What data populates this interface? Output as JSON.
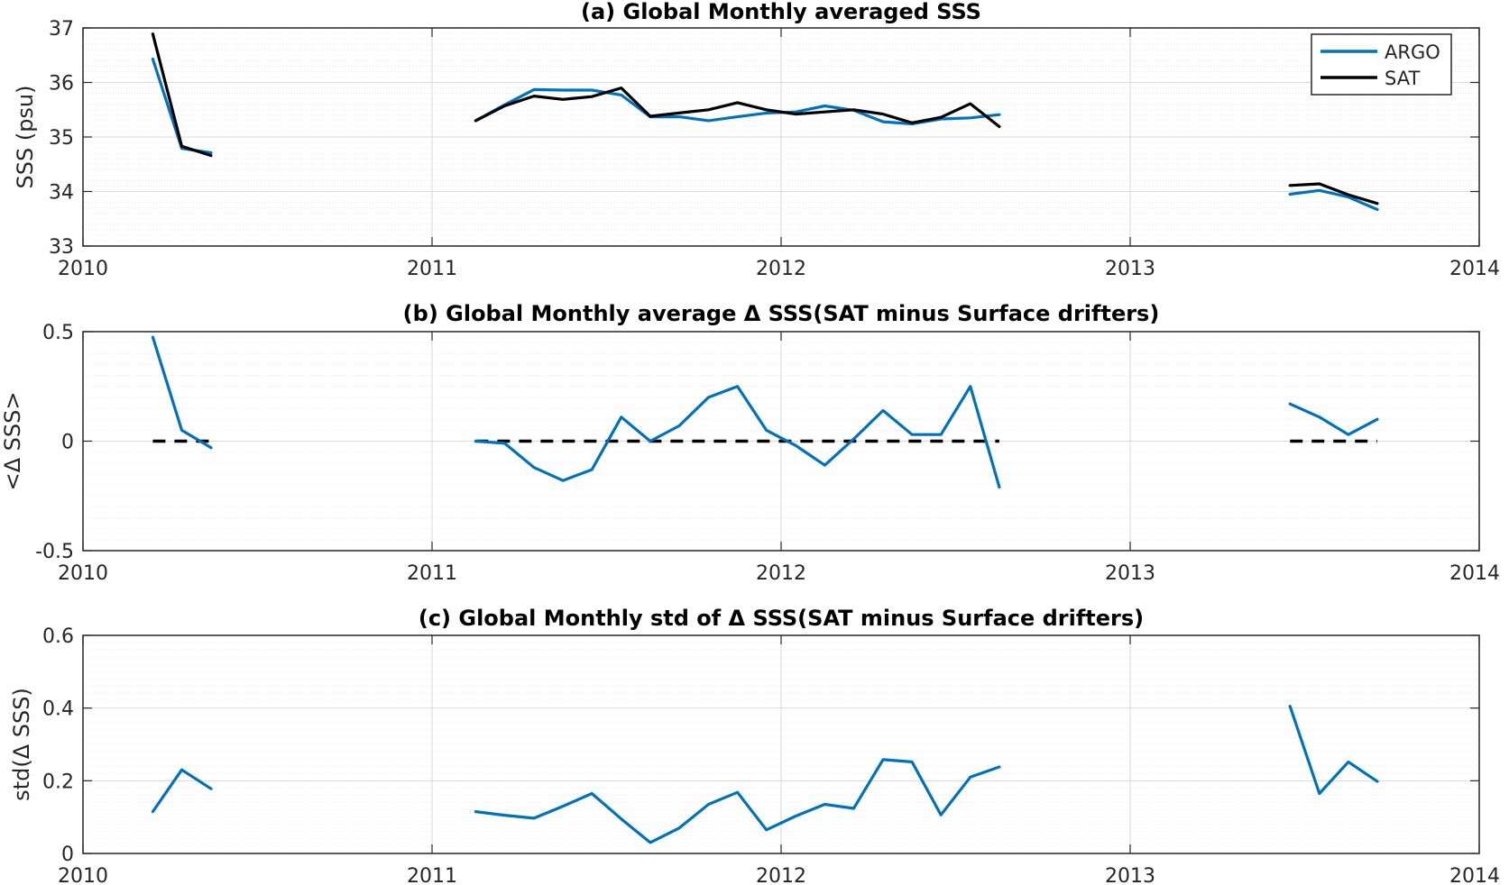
{
  "colors": {
    "argo": "#0072BD",
    "sat": "#000000",
    "zero_line": "#000000",
    "grid": "#d9d9d9"
  },
  "chart_data": [
    {
      "type": "line",
      "title": "(a) Global Monthly averaged SSS",
      "xlabel": "",
      "ylabel": "SSS (psu)",
      "xlim": [
        2010,
        2014
      ],
      "ylim": [
        33,
        37
      ],
      "xticks": [
        "2010",
        "2011",
        "2012",
        "2013",
        "2014"
      ],
      "yticks": [
        "33",
        "34",
        "35",
        "36",
        "37"
      ],
      "legend": {
        "position": "top-right",
        "entries": [
          "ARGO",
          "SAT"
        ]
      },
      "grid": true,
      "series": [
        {
          "name": "ARGO",
          "color": "#0072BD",
          "segments": [
            {
              "x": [
                2010.2,
                2010.283,
                2010.367
              ],
              "y": [
                36.43,
                34.79,
                34.71
              ]
            },
            {
              "x": [
                2011.125,
                2011.208,
                2011.292,
                2011.375,
                2011.458,
                2011.542,
                2011.625,
                2011.708,
                2011.792,
                2011.875,
                2011.958,
                2012.042,
                2012.125,
                2012.208,
                2012.292,
                2012.375,
                2012.458,
                2012.542,
                2012.625
              ],
              "y": [
                35.3,
                35.59,
                35.87,
                35.86,
                35.86,
                35.77,
                35.37,
                35.37,
                35.3,
                35.37,
                35.44,
                35.46,
                35.57,
                35.49,
                35.28,
                35.24,
                35.33,
                35.35,
                35.41
              ]
            },
            {
              "x": [
                2013.458,
                2013.542,
                2013.625,
                2013.708
              ],
              "y": [
                33.95,
                34.02,
                33.9,
                33.67
              ]
            }
          ]
        },
        {
          "name": "SAT",
          "color": "#000000",
          "segments": [
            {
              "x": [
                2010.2,
                2010.283,
                2010.367
              ],
              "y": [
                36.89,
                34.83,
                34.66
              ]
            },
            {
              "x": [
                2011.125,
                2011.208,
                2011.292,
                2011.375,
                2011.458,
                2011.542,
                2011.625,
                2011.708,
                2011.792,
                2011.875,
                2011.958,
                2012.042,
                2012.125,
                2012.208,
                2012.292,
                2012.375,
                2012.458,
                2012.542,
                2012.625
              ],
              "y": [
                35.3,
                35.57,
                35.75,
                35.69,
                35.74,
                35.9,
                35.38,
                35.44,
                35.5,
                35.63,
                35.5,
                35.42,
                35.46,
                35.5,
                35.42,
                35.26,
                35.36,
                35.61,
                35.19
              ]
            },
            {
              "x": [
                2013.458,
                2013.542,
                2013.625,
                2013.708
              ],
              "y": [
                34.11,
                34.14,
                33.94,
                33.78
              ]
            }
          ]
        }
      ]
    },
    {
      "type": "line",
      "title": "(b) Global Monthly average Δ SSS(SAT minus Surface drifters)",
      "xlabel": "",
      "ylabel": "<Δ SSS>",
      "xlim": [
        2010,
        2014
      ],
      "ylim": [
        -0.5,
        0.5
      ],
      "xticks": [
        "2010",
        "2011",
        "2012",
        "2013",
        "2014"
      ],
      "yticks": [
        "-0.5",
        "0",
        "0.5"
      ],
      "grid": true,
      "zero_line": true,
      "series": [
        {
          "color": "#0072BD",
          "segments": [
            {
              "x": [
                2010.2,
                2010.283,
                2010.367
              ],
              "y": [
                0.475,
                0.05,
                -0.03
              ]
            },
            {
              "x": [
                2011.125,
                2011.208,
                2011.292,
                2011.375,
                2011.458,
                2011.542,
                2011.625,
                2011.708,
                2011.792,
                2011.875,
                2011.958,
                2012.042,
                2012.125,
                2012.208,
                2012.292,
                2012.375,
                2012.458,
                2012.542,
                2012.625
              ],
              "y": [
                0.0,
                -0.01,
                -0.12,
                -0.18,
                -0.13,
                0.11,
                0.0,
                0.07,
                0.2,
                0.25,
                0.05,
                -0.02,
                -0.11,
                0.01,
                0.14,
                0.03,
                0.03,
                0.25,
                -0.21
              ]
            },
            {
              "x": [
                2013.458,
                2013.542,
                2013.625,
                2013.708
              ],
              "y": [
                0.17,
                0.11,
                0.03,
                0.1
              ]
            }
          ]
        }
      ],
      "dashed_zero_segments": [
        [
          2010.2,
          2010.367
        ],
        [
          2011.125,
          2012.625
        ],
        [
          2013.458,
          2013.708
        ]
      ]
    },
    {
      "type": "line",
      "title": "(c) Global Monthly std of Δ SSS(SAT minus Surface drifters)",
      "xlabel": "",
      "ylabel": "std(Δ SSS)",
      "xlim": [
        2010,
        2014
      ],
      "ylim": [
        0,
        0.6
      ],
      "xticks": [
        "2010",
        "2011",
        "2012",
        "2013",
        "2014"
      ],
      "yticks": [
        "0",
        "0.2",
        "0.4",
        "0.6"
      ],
      "grid": true,
      "series": [
        {
          "color": "#0072BD",
          "segments": [
            {
              "x": [
                2010.2,
                2010.283,
                2010.367
              ],
              "y": [
                0.115,
                0.23,
                0.178
              ]
            },
            {
              "x": [
                2011.125,
                2011.208,
                2011.292,
                2011.375,
                2011.458,
                2011.542,
                2011.625,
                2011.708,
                2011.792,
                2011.875,
                2011.958,
                2012.042,
                2012.125,
                2012.208,
                2012.292,
                2012.375,
                2012.458,
                2012.542,
                2012.625
              ],
              "y": [
                0.115,
                0.105,
                0.097,
                0.13,
                0.165,
                0.095,
                0.03,
                0.07,
                0.135,
                0.168,
                0.065,
                0.103,
                0.135,
                0.124,
                0.258,
                0.252,
                0.106,
                0.21,
                0.238
              ]
            },
            {
              "x": [
                2013.458,
                2013.542,
                2013.625,
                2013.708
              ],
              "y": [
                0.405,
                0.165,
                0.252,
                0.198
              ]
            }
          ]
        }
      ]
    }
  ]
}
